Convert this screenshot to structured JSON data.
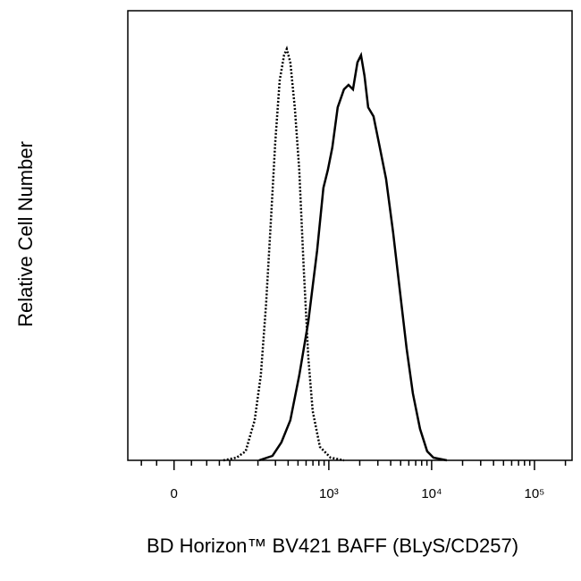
{
  "chart_data": {
    "type": "line",
    "xlabel": "BD Horizon™ BV421 BAFF (BLyS/CD257)",
    "ylabel": "Relative Cell Number",
    "xscale": "biexponential",
    "xlim": [
      -77,
      232000
    ],
    "ylim": [
      0,
      100
    ],
    "xticks": [
      {
        "value": 0,
        "label": "0"
      },
      {
        "value": 1000,
        "label": "10³"
      },
      {
        "value": 10000,
        "label": "10⁴"
      },
      {
        "value": 100000,
        "label": "10⁵"
      }
    ],
    "xminorticks": [
      -50,
      -25,
      25,
      50,
      75,
      100,
      200,
      300,
      400,
      500,
      600,
      700,
      800,
      900,
      2000,
      3000,
      4000,
      5000,
      6000,
      7000,
      8000,
      9000,
      20000,
      30000,
      40000,
      50000,
      60000,
      70000,
      80000,
      90000,
      200000
    ],
    "series": [
      {
        "color": "#000000",
        "dash": "dotted",
        "x": [
          84,
          119,
          149,
          185,
          214,
          242,
          269,
          298,
          330,
          365,
          388,
          420,
          465,
          514,
          569,
          630,
          696,
          818,
          1040,
          1405
        ],
        "values": [
          0,
          0.6,
          2.0,
          8.9,
          18.9,
          34.8,
          52.7,
          70.6,
          84.5,
          90.1,
          91.5,
          88.5,
          78.5,
          64.6,
          42.7,
          22.9,
          11.0,
          3.0,
          0.6,
          0
        ]
      },
      {
        "color": "#000000",
        "dash": "solid",
        "x": [
          205,
          280,
          343,
          420,
          514,
          630,
          770,
          886,
          979,
          1082,
          1221,
          1405,
          1554,
          1717,
          1898,
          2056,
          2227,
          2413,
          2721,
          3133,
          3603,
          4226,
          4964,
          5709,
          6567,
          7712,
          9052,
          10410,
          14054
        ],
        "values": [
          0,
          1.0,
          4.0,
          8.9,
          18.9,
          30.8,
          46.7,
          60.6,
          64.6,
          69.6,
          78.5,
          82.5,
          83.5,
          82.5,
          88.5,
          90.1,
          85.5,
          78.5,
          76.5,
          69.6,
          62.6,
          50.7,
          36.8,
          24.9,
          14.9,
          7.0,
          2.0,
          0.6,
          0
        ]
      }
    ]
  }
}
